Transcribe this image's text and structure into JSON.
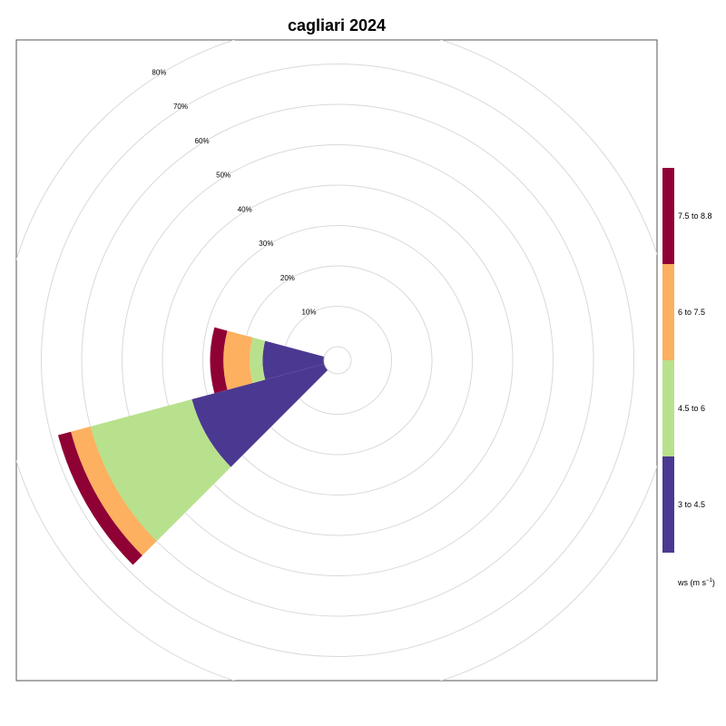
{
  "chart_data": {
    "type": "wind-rose",
    "title": "cagliari 2024",
    "radial_axis": {
      "unit": "%",
      "ticks": [
        10,
        20,
        30,
        40,
        50,
        60,
        70,
        80
      ],
      "tick_labels": [
        "10%",
        "20%",
        "30%",
        "40%",
        "50%",
        "60%",
        "70%",
        "80%"
      ],
      "max": 80,
      "grid": true
    },
    "direction_bins_deg": [
      240,
      270
    ],
    "series": [
      {
        "name": "3 to 4.5",
        "color": "#4b3991",
        "values": [
          34,
          15.2
        ]
      },
      {
        "name": "4.5 to 6",
        "color": "#b8e18d",
        "values": [
          26,
          3.2
        ]
      },
      {
        "name": "6 to 7.5",
        "color": "#fdb05f",
        "values": [
          5,
          6.5
        ]
      },
      {
        "name": "7.5 to 8.8",
        "color": "#8f0135",
        "values": [
          3.3,
          3.3
        ]
      }
    ],
    "legend": {
      "position": "right",
      "title_prefix": "ws (m s",
      "title_superscript": "−1",
      "title_suffix": ")"
    }
  }
}
